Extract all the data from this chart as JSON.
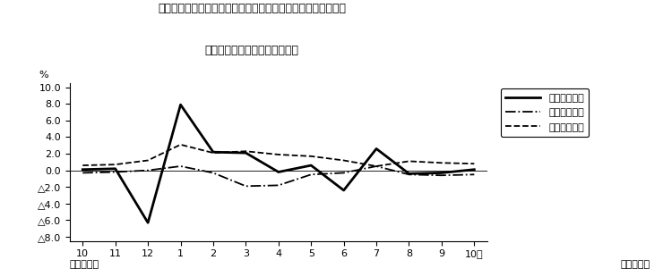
{
  "title_line1": "第４図　賃金、労働時間、常用雇用指数　対前年同月比の推移",
  "title_line2": "（規模５人以上　調査産業計）",
  "xlabel_left": "平成２２年",
  "xlabel_right": "平成２３年",
  "ylabel": "%",
  "x_labels": [
    "10",
    "11",
    "12",
    "1",
    "2",
    "3",
    "4",
    "5",
    "6",
    "7",
    "8",
    "9",
    "10月"
  ],
  "ylim": [
    -8.5,
    10.5
  ],
  "yticks": [
    10.0,
    8.0,
    6.0,
    4.0,
    2.0,
    0.0,
    -2.0,
    -4.0,
    -6.0,
    -8.0
  ],
  "ytick_labels": [
    "10.0",
    "8.0",
    "6.0",
    "4.0",
    "2.0",
    "0.0",
    "△2.0",
    "△4.0",
    "△6.0",
    "△8.0"
  ],
  "genkin_values": [
    0.1,
    0.2,
    -6.3,
    7.9,
    2.2,
    2.1,
    -0.2,
    0.6,
    -2.4,
    2.6,
    -0.4,
    -0.3,
    0.1
  ],
  "jitsu_values": [
    -0.3,
    -0.2,
    0.0,
    0.5,
    -0.3,
    -1.9,
    -1.8,
    -0.5,
    -0.3,
    0.5,
    -0.5,
    -0.6,
    -0.5
  ],
  "koyo_values": [
    0.6,
    0.7,
    1.2,
    3.1,
    2.1,
    2.3,
    1.9,
    1.7,
    1.2,
    0.5,
    1.1,
    0.9,
    0.8
  ],
  "label_genkin": "現金給与総額",
  "label_jitsu": "総実労働時間",
  "label_koyo": "常用雇用指数",
  "background_color": "#ffffff"
}
